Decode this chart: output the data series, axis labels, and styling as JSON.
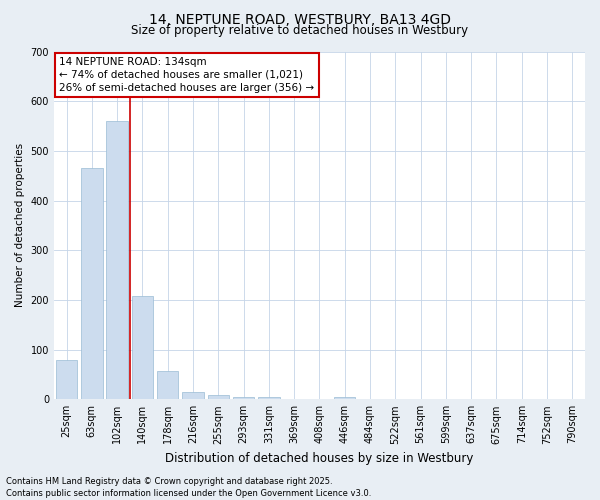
{
  "title": "14, NEPTUNE ROAD, WESTBURY, BA13 4GD",
  "subtitle": "Size of property relative to detached houses in Westbury",
  "xlabel": "Distribution of detached houses by size in Westbury",
  "ylabel": "Number of detached properties",
  "categories": [
    "25sqm",
    "63sqm",
    "102sqm",
    "140sqm",
    "178sqm",
    "216sqm",
    "255sqm",
    "293sqm",
    "331sqm",
    "369sqm",
    "408sqm",
    "446sqm",
    "484sqm",
    "522sqm",
    "561sqm",
    "599sqm",
    "637sqm",
    "675sqm",
    "714sqm",
    "752sqm",
    "790sqm"
  ],
  "values": [
    80,
    465,
    560,
    207,
    57,
    15,
    8,
    5,
    5,
    0,
    0,
    5,
    0,
    0,
    0,
    0,
    0,
    0,
    0,
    0,
    0
  ],
  "bar_color": "#ccdcee",
  "bar_edge_color": "#9abcd4",
  "vline_color": "#cc0000",
  "vline_x": 2.5,
  "ylim": [
    0,
    700
  ],
  "yticks": [
    0,
    100,
    200,
    300,
    400,
    500,
    600,
    700
  ],
  "annotation_text": "14 NEPTUNE ROAD: 134sqm\n← 74% of detached houses are smaller (1,021)\n26% of semi-detached houses are larger (356) →",
  "annotation_box_facecolor": "#ffffff",
  "annotation_box_edgecolor": "#cc0000",
  "footnote": "Contains HM Land Registry data © Crown copyright and database right 2025.\nContains public sector information licensed under the Open Government Licence v3.0.",
  "bg_color": "#e8eef4",
  "plot_bg_color": "#ffffff",
  "grid_color": "#c5d5e8",
  "title_fontsize": 10,
  "subtitle_fontsize": 8.5,
  "ylabel_fontsize": 7.5,
  "xlabel_fontsize": 8.5,
  "tick_fontsize": 7,
  "annotation_fontsize": 7.5,
  "footnote_fontsize": 6
}
